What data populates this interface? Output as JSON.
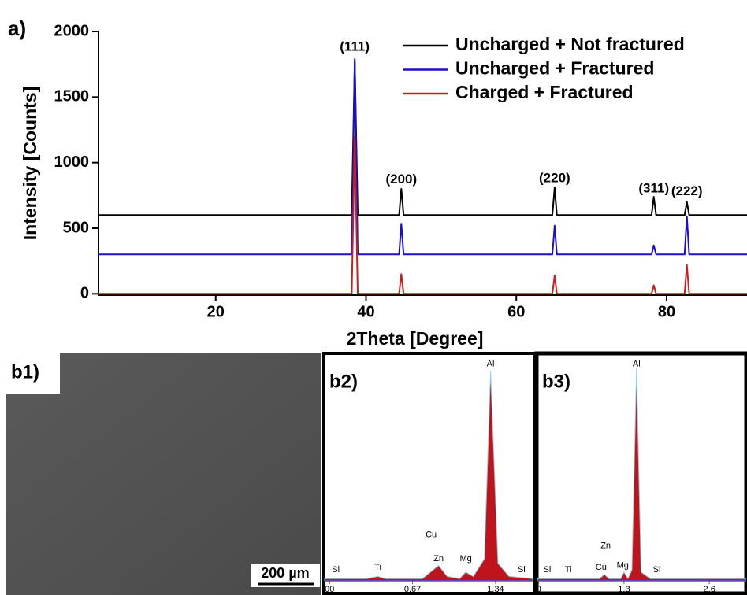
{
  "chart_data": [
    {
      "type": "line",
      "panel_label": "a)",
      "x_label": "2Theta [Degree]",
      "y_label": "Intensity [Counts]",
      "xlim": [
        4.4,
        90.7
      ],
      "ylim": [
        -10,
        2000
      ],
      "xticks": [
        20,
        40,
        60,
        80
      ],
      "yticks": [
        0,
        500,
        1000,
        1500,
        2000
      ],
      "legend": "upper right",
      "x": [
        4.4,
        38.1,
        38.5,
        38.9,
        44.4,
        44.7,
        45.0,
        64.8,
        65.1,
        65.4,
        78.0,
        78.3,
        78.6,
        82.4,
        82.7,
        83.0,
        90.7
      ],
      "series": [
        {
          "name": "Uncharged + Not fractured",
          "color": "#000000",
          "values": [
            600,
            600,
            1780,
            600,
            600,
            800,
            600,
            600,
            810,
            600,
            600,
            740,
            600,
            600,
            700,
            600,
            600
          ]
        },
        {
          "name": "Uncharged + Fractured",
          "color": "#1a0fd0",
          "values": [
            300,
            300,
            1790,
            300,
            300,
            535,
            300,
            300,
            520,
            300,
            300,
            370,
            300,
            300,
            590,
            300,
            300
          ]
        },
        {
          "name": "Charged + Fractured",
          "color": "#c8201e",
          "values": [
            0,
            0,
            1200,
            0,
            0,
            150,
            0,
            0,
            140,
            0,
            0,
            65,
            0,
            0,
            220,
            0,
            0
          ]
        }
      ],
      "annotations": [
        {
          "text": "(111)",
          "x": 38.5,
          "y": 1880
        },
        {
          "text": "(200)",
          "x": 44.7,
          "y": 870
        },
        {
          "text": "(220)",
          "x": 65.1,
          "y": 877
        },
        {
          "text": "(311)",
          "x": 78.3,
          "y": 800
        },
        {
          "text": "(222)",
          "x": 82.7,
          "y": 780
        }
      ]
    },
    {
      "type": "area",
      "panel_label": "b2)",
      "color": "#c0141c",
      "xlim": [
        -0.04,
        1.64
      ],
      "ylim": [
        0,
        100
      ],
      "xticks": [
        {
          "value": 0,
          "label": "00"
        },
        0.67,
        1.34
      ],
      "x": [
        -0.04,
        0.3,
        0.39,
        0.45,
        0.75,
        0.88,
        0.95,
        1.05,
        1.1,
        1.16,
        1.25,
        1.3,
        1.36,
        1.45,
        1.64
      ],
      "values": [
        1,
        1,
        2,
        1,
        1,
        7,
        2,
        1,
        4,
        2,
        10,
        96,
        8,
        2,
        1
      ],
      "annotations": [
        {
          "text": "Al",
          "x": 1.3,
          "y": 99
        },
        {
          "text": "Cu",
          "x": 0.82,
          "y": 21
        },
        {
          "text": "Zn",
          "x": 0.88,
          "y": 10
        },
        {
          "text": "Mg",
          "x": 1.1,
          "y": 10
        },
        {
          "text": "Ti",
          "x": 0.39,
          "y": 6
        },
        {
          "text": "Si",
          "x": 0.05,
          "y": 5
        },
        {
          "text": "Si",
          "x": 1.55,
          "y": 5
        }
      ]
    },
    {
      "type": "area",
      "panel_label": "b3)",
      "color": "#c0141c",
      "xlim": [
        -0.02,
        3.15
      ],
      "ylim": [
        0,
        100
      ],
      "xticks": [
        0,
        1.3,
        2.6
      ],
      "x": [
        -0.02,
        0.4,
        0.93,
        1.0,
        1.07,
        1.2,
        1.25,
        1.3,
        1.36,
        1.42,
        1.49,
        1.56,
        1.7,
        3.15
      ],
      "values": [
        1,
        1,
        1,
        3,
        1,
        1,
        1,
        4,
        1,
        5,
        97,
        4,
        1,
        1
      ],
      "annotations": [
        {
          "text": "Al",
          "x": 1.49,
          "y": 99
        },
        {
          "text": "Zn",
          "x": 1.02,
          "y": 16
        },
        {
          "text": "Cu",
          "x": 0.95,
          "y": 6
        },
        {
          "text": "Mg",
          "x": 1.28,
          "y": 7
        },
        {
          "text": "Ti",
          "x": 0.45,
          "y": 5
        },
        {
          "text": "Si",
          "x": 0.13,
          "y": 5
        },
        {
          "text": "Si",
          "x": 1.8,
          "y": 5
        }
      ]
    }
  ],
  "image": {
    "panel_label": "b1)",
    "scale_bar": "200 µm"
  }
}
